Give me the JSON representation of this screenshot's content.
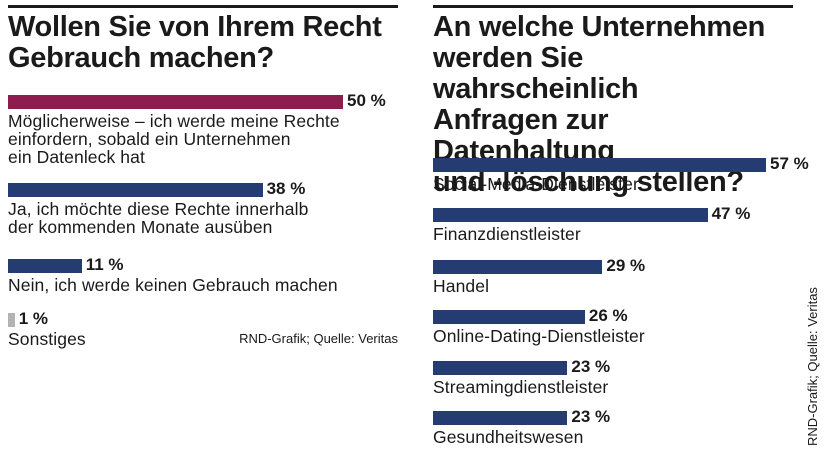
{
  "left": {
    "title": "Wollen Sie von Ihrem Recht\nGebrauch machen?",
    "source": "RND-Grafik; Quelle: Veritas"
  },
  "right": {
    "title": "An welche Unternehmen\nwerden Sie wahrscheinlich\nAnfragen zur Datenhaltung\nund -löschung stellen?",
    "source": "RND-Grafik; Quelle: Veritas"
  },
  "chart_data": [
    {
      "type": "bar",
      "orientation": "horizontal",
      "title": "Wollen Sie von Ihrem Recht Gebrauch machen?",
      "unit": "%",
      "categories": [
        "Möglicherweise – ich werde meine Rechte\neinfordern, sobald ein Unternehmen\nein Datenleck hat",
        "Ja, ich möchte diese Rechte innerhalb\nder kommenden Monate ausüben",
        "Nein, ich werde keinen Gebrauch machen",
        "Sonstiges"
      ],
      "values": [
        50,
        38,
        11,
        1
      ],
      "value_labels": [
        "50 %",
        "38 %",
        "11 %",
        "1 %"
      ],
      "colors": [
        "#8c1d4e",
        "#253c72",
        "#253c72",
        "#b3b3b3"
      ],
      "xlim": [
        0,
        50
      ],
      "grid": false
    },
    {
      "type": "bar",
      "orientation": "horizontal",
      "title": "An welche Unternehmen werden Sie wahrscheinlich Anfragen zur Datenhaltung und -löschung stellen?",
      "unit": "%",
      "categories": [
        "Social-Media-Dienstleister",
        "Finanzdienstleister",
        "Handel",
        "Online-Dating-Dienstleister",
        "Streamingdienstleister",
        "Gesundheitswesen"
      ],
      "values": [
        57,
        47,
        29,
        26,
        23,
        23
      ],
      "value_labels": [
        "57 %",
        "47 %",
        "29 %",
        "26 %",
        "23 %",
        "23 %"
      ],
      "colors": [
        "#253c72",
        "#253c72",
        "#253c72",
        "#253c72",
        "#253c72",
        "#253c72"
      ],
      "xlim": [
        0,
        57
      ],
      "grid": false
    }
  ]
}
